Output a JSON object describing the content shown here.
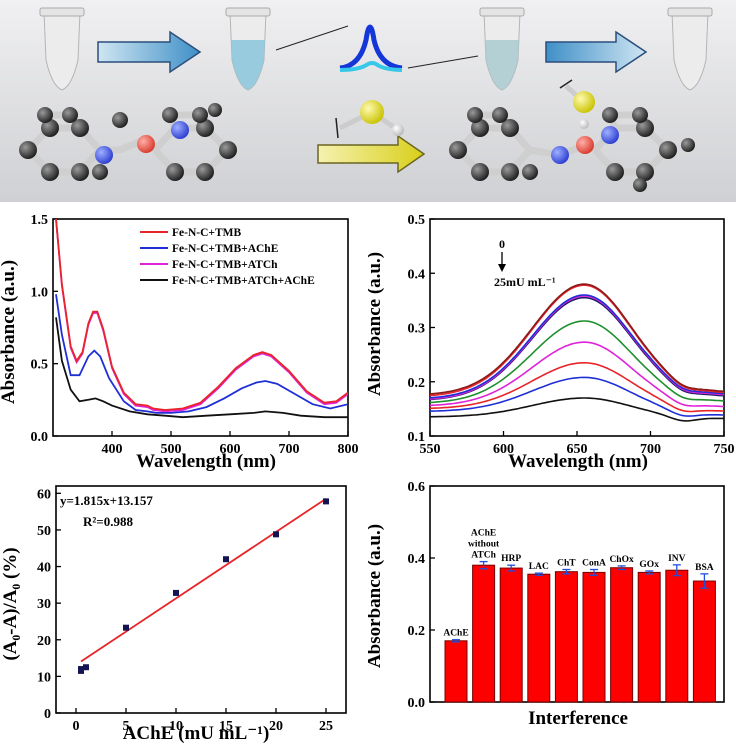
{
  "colors": {
    "red": "#e8252a",
    "blue": "#1f2fd6",
    "magenta": "#e023d8",
    "black": "#111111",
    "bar": "#ff0000",
    "bar_edge": "#7a0000",
    "errbar": "#1f4fe0",
    "scheme_bg": "#d9dadc"
  },
  "scheme": {
    "icons": [
      "tube-icon",
      "arrow-right-icon",
      "peak-icon",
      "arrow-left-icon",
      "fe-n-c-molecule-icon",
      "thiocholine-icon"
    ]
  },
  "chart_data": [
    {
      "id": "a",
      "type": "line",
      "title": "",
      "xlabel": "Wavelength (nm)",
      "ylabel": "Absorbance (a.u.)",
      "xlim": [
        300,
        800
      ],
      "ylim": [
        0,
        1.5
      ],
      "xticks": [
        400,
        500,
        600,
        700,
        800
      ],
      "yticks": [
        0.0,
        0.5,
        1.0,
        1.5
      ],
      "xtick_labels": [
        "400",
        "500",
        "600",
        "700",
        "800"
      ],
      "ytick_labels": [
        "0.0",
        "0.5",
        "1.0",
        "1.5"
      ],
      "legend_position": "top-right",
      "series": [
        {
          "name": "Fe-N-C+TMB",
          "color": "#e8252a",
          "points": [
            [
              305,
              1.5
            ],
            [
              315,
              1.05
            ],
            [
              330,
              0.62
            ],
            [
              340,
              0.52
            ],
            [
              350,
              0.58
            ],
            [
              360,
              0.78
            ],
            [
              368,
              0.86
            ],
            [
              375,
              0.86
            ],
            [
              385,
              0.74
            ],
            [
              400,
              0.48
            ],
            [
              420,
              0.3
            ],
            [
              440,
              0.22
            ],
            [
              460,
              0.21
            ],
            [
              470,
              0.19
            ],
            [
              490,
              0.18
            ],
            [
              520,
              0.19
            ],
            [
              550,
              0.23
            ],
            [
              580,
              0.34
            ],
            [
              610,
              0.47
            ],
            [
              640,
              0.56
            ],
            [
              655,
              0.58
            ],
            [
              670,
              0.56
            ],
            [
              700,
              0.45
            ],
            [
              730,
              0.31
            ],
            [
              760,
              0.23
            ],
            [
              780,
              0.24
            ],
            [
              800,
              0.3
            ]
          ]
        },
        {
          "name": "Fe-N-C+TMB+AChE",
          "color": "#1f2fd6",
          "points": [
            [
              305,
              0.98
            ],
            [
              315,
              0.7
            ],
            [
              330,
              0.42
            ],
            [
              345,
              0.42
            ],
            [
              360,
              0.55
            ],
            [
              370,
              0.59
            ],
            [
              380,
              0.55
            ],
            [
              395,
              0.4
            ],
            [
              420,
              0.24
            ],
            [
              440,
              0.18
            ],
            [
              460,
              0.17
            ],
            [
              475,
              0.16
            ],
            [
              500,
              0.16
            ],
            [
              530,
              0.17
            ],
            [
              560,
              0.2
            ],
            [
              590,
              0.26
            ],
            [
              620,
              0.33
            ],
            [
              645,
              0.37
            ],
            [
              660,
              0.38
            ],
            [
              680,
              0.36
            ],
            [
              710,
              0.29
            ],
            [
              740,
              0.22
            ],
            [
              770,
              0.19
            ],
            [
              800,
              0.22
            ]
          ]
        },
        {
          "name": "Fe-N-C+TMB+ATCh",
          "color": "#e023d8",
          "points": [
            [
              305,
              1.5
            ],
            [
              315,
              1.04
            ],
            [
              330,
              0.61
            ],
            [
              340,
              0.51
            ],
            [
              350,
              0.57
            ],
            [
              360,
              0.77
            ],
            [
              368,
              0.85
            ],
            [
              375,
              0.85
            ],
            [
              385,
              0.73
            ],
            [
              400,
              0.47
            ],
            [
              420,
              0.29
            ],
            [
              440,
              0.21
            ],
            [
              460,
              0.2
            ],
            [
              470,
              0.18
            ],
            [
              490,
              0.17
            ],
            [
              520,
              0.18
            ],
            [
              550,
              0.22
            ],
            [
              580,
              0.33
            ],
            [
              610,
              0.46
            ],
            [
              640,
              0.55
            ],
            [
              655,
              0.57
            ],
            [
              670,
              0.55
            ],
            [
              700,
              0.44
            ],
            [
              730,
              0.3
            ],
            [
              760,
              0.22
            ],
            [
              780,
              0.23
            ],
            [
              800,
              0.29
            ]
          ]
        },
        {
          "name": "Fe-N-C+TMB+ATCh+AChE",
          "color": "#111111",
          "points": [
            [
              305,
              0.82
            ],
            [
              315,
              0.52
            ],
            [
              330,
              0.32
            ],
            [
              345,
              0.24
            ],
            [
              360,
              0.25
            ],
            [
              372,
              0.26
            ],
            [
              385,
              0.24
            ],
            [
              400,
              0.21
            ],
            [
              430,
              0.17
            ],
            [
              460,
              0.15
            ],
            [
              490,
              0.14
            ],
            [
              520,
              0.13
            ],
            [
              560,
              0.14
            ],
            [
              600,
              0.15
            ],
            [
              640,
              0.16
            ],
            [
              660,
              0.17
            ],
            [
              690,
              0.16
            ],
            [
              720,
              0.14
            ],
            [
              760,
              0.13
            ],
            [
              800,
              0.13
            ]
          ]
        }
      ]
    },
    {
      "id": "b",
      "type": "line",
      "title": "",
      "xlabel": "Wavelength (nm)",
      "ylabel": "Absorbance (a.u.)",
      "xlim": [
        550,
        750
      ],
      "ylim": [
        0.1,
        0.5
      ],
      "xticks": [
        550,
        600,
        650,
        700,
        750
      ],
      "yticks": [
        0.1,
        0.2,
        0.3,
        0.4,
        0.5
      ],
      "xtick_labels": [
        "550",
        "600",
        "650",
        "700",
        "750"
      ],
      "ytick_labels": [
        "0.1",
        "0.2",
        "0.3",
        "0.4",
        "0.5"
      ],
      "annotation_top": "0",
      "annotation_bottom": "25mU mL⁻¹",
      "curve_shape": {
        "center": 655,
        "left_width": 50,
        "right_width": 45
      },
      "series": [
        {
          "color": "#8b1a1a",
          "peak": 0.38,
          "left_base": 0.175,
          "right_base": 0.18
        },
        {
          "color": "#e8252a",
          "peak": 0.378,
          "left_base": 0.172,
          "right_base": 0.178
        },
        {
          "color": "#1f2fd6",
          "peak": 0.36,
          "left_base": 0.168,
          "right_base": 0.176
        },
        {
          "color": "#e023d8",
          "peak": 0.358,
          "left_base": 0.166,
          "right_base": 0.174
        },
        {
          "color": "#1a1a6b",
          "peak": 0.355,
          "left_base": 0.165,
          "right_base": 0.172
        },
        {
          "color": "#1e8f2e",
          "peak": 0.312,
          "left_base": 0.16,
          "right_base": 0.163
        },
        {
          "color": "#e023d8",
          "peak": 0.273,
          "left_base": 0.155,
          "right_base": 0.153
        },
        {
          "color": "#e8252a",
          "peak": 0.235,
          "left_base": 0.15,
          "right_base": 0.145
        },
        {
          "color": "#1f2fd6",
          "peak": 0.208,
          "left_base": 0.145,
          "right_base": 0.138
        },
        {
          "color": "#111111",
          "peak": 0.17,
          "left_base": 0.135,
          "right_base": 0.132
        }
      ]
    },
    {
      "id": "c",
      "type": "scatter",
      "title": "",
      "xlabel": "AChE (mU mL⁻¹)",
      "ylabel": "(A₀-A)/A₀ (%)",
      "xlim": [
        -2,
        27
      ],
      "ylim": [
        0,
        62
      ],
      "xticks": [
        0,
        5,
        10,
        15,
        20,
        25
      ],
      "yticks": [
        0,
        10,
        20,
        30,
        40,
        50,
        60
      ],
      "xtick_labels": [
        "0",
        "5",
        "10",
        "15",
        "20",
        "25"
      ],
      "ytick_labels": [
        "0",
        "10",
        "20",
        "30",
        "40",
        "50",
        "60"
      ],
      "points": [
        [
          0.5,
          11.5
        ],
        [
          0.5,
          12.0
        ],
        [
          1,
          12.5
        ],
        [
          5,
          23.3
        ],
        [
          10,
          32.8
        ],
        [
          15,
          42.0
        ],
        [
          20,
          48.8
        ],
        [
          25,
          57.8
        ]
      ],
      "fit": {
        "slope": 1.815,
        "intercept": 13.157,
        "x_range": [
          0.5,
          25
        ]
      },
      "equation": "y=1.815x+13.157",
      "r2": "R²=0.988"
    },
    {
      "id": "d",
      "type": "bar",
      "title": "",
      "xlabel": "Interference",
      "ylabel": "Absorbance (a.u.)",
      "ylim": [
        0,
        0.6
      ],
      "yticks": [
        0.0,
        0.2,
        0.4,
        0.6
      ],
      "ytick_labels": [
        "0.0",
        "0.2",
        "0.4",
        "0.6"
      ],
      "categories": [
        "AChE",
        "AChE without ATCh",
        "HRP",
        "LAC",
        "ChT",
        "ConA",
        "ChOx",
        "GOx",
        "INV",
        "BSA"
      ],
      "category_label_lines": [
        [
          "AChE"
        ],
        [
          "AChE",
          "without",
          "ATCh"
        ],
        [
          "HRP"
        ],
        [
          "LAC"
        ],
        [
          "ChT"
        ],
        [
          "ConA"
        ],
        [
          "ChOx"
        ],
        [
          "GOx"
        ],
        [
          "INV"
        ],
        [
          "BSA"
        ]
      ],
      "values": [
        0.17,
        0.38,
        0.372,
        0.355,
        0.362,
        0.36,
        0.373,
        0.36,
        0.366,
        0.336
      ],
      "errors": [
        0.003,
        0.01,
        0.008,
        0.003,
        0.006,
        0.008,
        0.005,
        0.004,
        0.015,
        0.02
      ]
    }
  ]
}
